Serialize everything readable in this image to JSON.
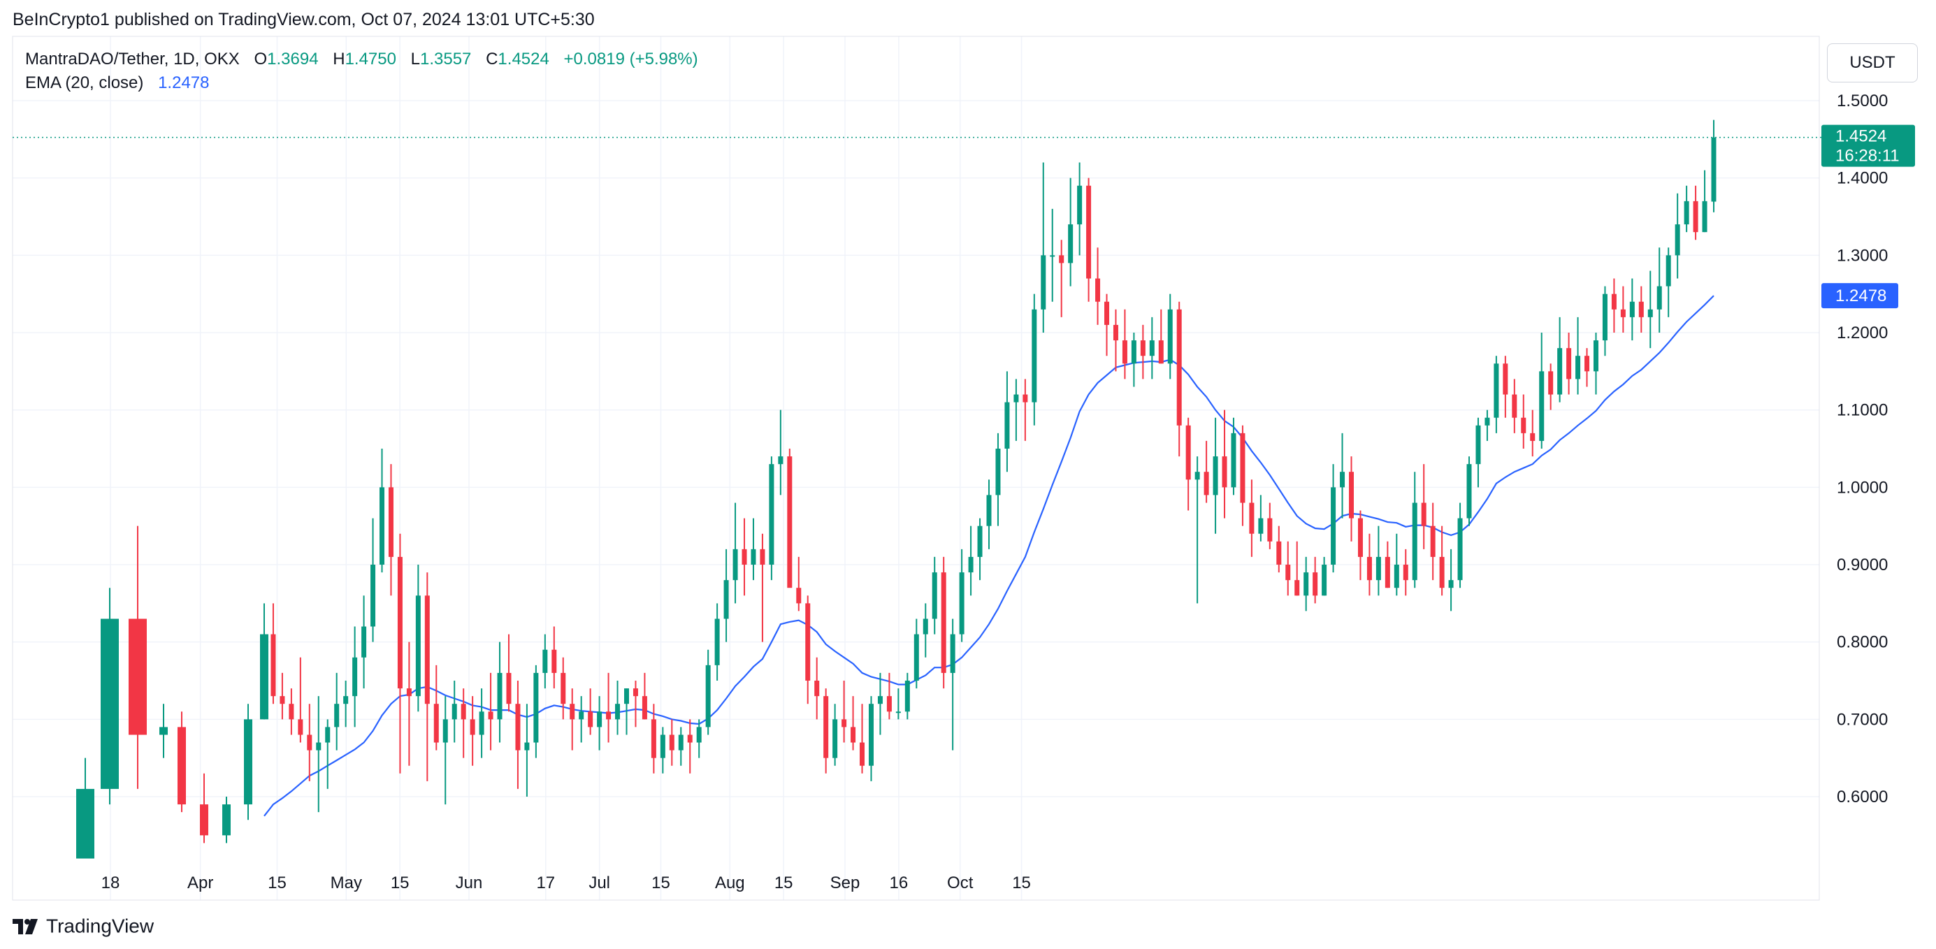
{
  "header": {
    "published": "BeInCrypto1 published on TradingView.com, Oct 07, 2024 13:01 UTC+5:30"
  },
  "legend": {
    "symbol": "MantraDAO/Tether, 1D, OKX",
    "o_label": "O",
    "o_value": "1.3694",
    "h_label": "H",
    "h_value": "1.4750",
    "l_label": "L",
    "l_value": "1.3557",
    "c_label": "C",
    "c_value": "1.4524",
    "change": "+0.0819 (+5.98%)",
    "ema_label": "EMA (20, close)",
    "ema_value": "1.2478"
  },
  "currency_button": "USDT",
  "footer": {
    "brand": "TradingView"
  },
  "colors": {
    "up": "#089981",
    "down": "#f23645",
    "ema": "#2962ff",
    "grid": "#f0f3fa"
  },
  "chart_data": {
    "type": "candlestick",
    "title": "MantraDAO/Tether, 1D, OKX",
    "ylim": [
      0.52,
      1.54
    ],
    "y_ticks": [
      "0.6000",
      "0.7000",
      "0.8000",
      "0.9000",
      "1.0000",
      "1.1000",
      "1.2000",
      "1.3000",
      "1.4000",
      "1.5000"
    ],
    "x_ticks": [
      "18",
      "Apr",
      "15",
      "May",
      "15",
      "Jun",
      "17",
      "Jul",
      "15",
      "Aug",
      "15",
      "Sep",
      "16",
      "Oct",
      "15"
    ],
    "last_price": {
      "value": 1.4524,
      "label": "1.4524",
      "countdown": "16:28:11"
    },
    "ema_label_value": {
      "value": 1.2478,
      "label": "1.2478"
    },
    "candles": [
      [
        0.52,
        0.65,
        0.51,
        0.61
      ],
      [
        0.61,
        0.87,
        0.59,
        0.83
      ],
      [
        0.83,
        0.95,
        0.61,
        0.68
      ],
      [
        0.68,
        0.72,
        0.65,
        0.69
      ],
      [
        0.69,
        0.71,
        0.58,
        0.59
      ],
      [
        0.59,
        0.63,
        0.54,
        0.55
      ],
      [
        0.55,
        0.6,
        0.54,
        0.59
      ],
      [
        0.59,
        0.72,
        0.57,
        0.7
      ],
      [
        0.7,
        0.85,
        0.7,
        0.81
      ],
      [
        0.81,
        0.85,
        0.72,
        0.73
      ],
      [
        0.73,
        0.76,
        0.7,
        0.72
      ],
      [
        0.72,
        0.74,
        0.68,
        0.7
      ],
      [
        0.7,
        0.78,
        0.67,
        0.68
      ],
      [
        0.68,
        0.72,
        0.62,
        0.66
      ],
      [
        0.66,
        0.73,
        0.58,
        0.67
      ],
      [
        0.67,
        0.7,
        0.61,
        0.69
      ],
      [
        0.69,
        0.76,
        0.66,
        0.72
      ],
      [
        0.72,
        0.75,
        0.69,
        0.73
      ],
      [
        0.73,
        0.82,
        0.69,
        0.78
      ],
      [
        0.78,
        0.86,
        0.74,
        0.82
      ],
      [
        0.82,
        0.96,
        0.8,
        0.9
      ],
      [
        0.9,
        1.05,
        0.89,
        1.0
      ],
      [
        1.0,
        1.03,
        0.86,
        0.91
      ],
      [
        0.91,
        0.94,
        0.63,
        0.74
      ],
      [
        0.74,
        0.8,
        0.64,
        0.73
      ],
      [
        0.73,
        0.9,
        0.71,
        0.86
      ],
      [
        0.86,
        0.89,
        0.62,
        0.72
      ],
      [
        0.72,
        0.77,
        0.66,
        0.67
      ],
      [
        0.67,
        0.73,
        0.59,
        0.7
      ],
      [
        0.7,
        0.75,
        0.67,
        0.72
      ],
      [
        0.72,
        0.74,
        0.65,
        0.7
      ],
      [
        0.7,
        0.73,
        0.64,
        0.68
      ],
      [
        0.68,
        0.74,
        0.65,
        0.71
      ],
      [
        0.71,
        0.76,
        0.66,
        0.7
      ],
      [
        0.7,
        0.8,
        0.67,
        0.76
      ],
      [
        0.76,
        0.81,
        0.71,
        0.72
      ],
      [
        0.72,
        0.75,
        0.61,
        0.66
      ],
      [
        0.66,
        0.72,
        0.6,
        0.67
      ],
      [
        0.67,
        0.77,
        0.65,
        0.76
      ],
      [
        0.76,
        0.81,
        0.74,
        0.79
      ],
      [
        0.79,
        0.82,
        0.74,
        0.76
      ],
      [
        0.76,
        0.78,
        0.7,
        0.72
      ],
      [
        0.72,
        0.74,
        0.66,
        0.7
      ],
      [
        0.7,
        0.73,
        0.67,
        0.71
      ],
      [
        0.71,
        0.74,
        0.68,
        0.69
      ],
      [
        0.69,
        0.73,
        0.66,
        0.71
      ],
      [
        0.71,
        0.76,
        0.67,
        0.7
      ],
      [
        0.7,
        0.75,
        0.68,
        0.72
      ],
      [
        0.72,
        0.74,
        0.68,
        0.74
      ],
      [
        0.74,
        0.75,
        0.69,
        0.73
      ],
      [
        0.73,
        0.76,
        0.7,
        0.7
      ],
      [
        0.7,
        0.72,
        0.63,
        0.65
      ],
      [
        0.65,
        0.69,
        0.63,
        0.68
      ],
      [
        0.68,
        0.7,
        0.64,
        0.66
      ],
      [
        0.66,
        0.69,
        0.64,
        0.68
      ],
      [
        0.68,
        0.7,
        0.63,
        0.67
      ],
      [
        0.67,
        0.7,
        0.65,
        0.69
      ],
      [
        0.69,
        0.79,
        0.68,
        0.77
      ],
      [
        0.77,
        0.85,
        0.75,
        0.83
      ],
      [
        0.83,
        0.92,
        0.8,
        0.88
      ],
      [
        0.88,
        0.98,
        0.85,
        0.92
      ],
      [
        0.92,
        0.96,
        0.86,
        0.9
      ],
      [
        0.9,
        0.96,
        0.88,
        0.92
      ],
      [
        0.92,
        0.94,
        0.8,
        0.9
      ],
      [
        0.9,
        1.04,
        0.88,
        1.03
      ],
      [
        1.03,
        1.1,
        0.99,
        1.04
      ],
      [
        1.04,
        1.05,
        0.88,
        0.87
      ],
      [
        0.87,
        0.91,
        0.84,
        0.85
      ],
      [
        0.85,
        0.86,
        0.72,
        0.75
      ],
      [
        0.75,
        0.78,
        0.7,
        0.73
      ],
      [
        0.73,
        0.74,
        0.63,
        0.65
      ],
      [
        0.65,
        0.72,
        0.64,
        0.7
      ],
      [
        0.7,
        0.75,
        0.67,
        0.69
      ],
      [
        0.69,
        0.73,
        0.66,
        0.67
      ],
      [
        0.67,
        0.72,
        0.63,
        0.64
      ],
      [
        0.64,
        0.73,
        0.62,
        0.72
      ],
      [
        0.72,
        0.76,
        0.68,
        0.73
      ],
      [
        0.73,
        0.76,
        0.7,
        0.71
      ],
      [
        0.71,
        0.74,
        0.7,
        0.71
      ],
      [
        0.71,
        0.76,
        0.7,
        0.75
      ],
      [
        0.75,
        0.83,
        0.74,
        0.81
      ],
      [
        0.81,
        0.85,
        0.78,
        0.83
      ],
      [
        0.83,
        0.91,
        0.81,
        0.89
      ],
      [
        0.89,
        0.91,
        0.74,
        0.76
      ],
      [
        0.76,
        0.83,
        0.66,
        0.81
      ],
      [
        0.81,
        0.92,
        0.8,
        0.89
      ],
      [
        0.89,
        0.95,
        0.86,
        0.91
      ],
      [
        0.91,
        0.96,
        0.88,
        0.95
      ],
      [
        0.95,
        1.01,
        0.92,
        0.99
      ],
      [
        0.99,
        1.07,
        0.95,
        1.05
      ],
      [
        1.05,
        1.15,
        1.02,
        1.11
      ],
      [
        1.11,
        1.14,
        1.06,
        1.12
      ],
      [
        1.12,
        1.14,
        1.06,
        1.11
      ],
      [
        1.11,
        1.25,
        1.08,
        1.23
      ],
      [
        1.23,
        1.42,
        1.2,
        1.3
      ],
      [
        1.3,
        1.36,
        1.24,
        1.3
      ],
      [
        1.3,
        1.32,
        1.22,
        1.29
      ],
      [
        1.29,
        1.4,
        1.26,
        1.34
      ],
      [
        1.34,
        1.42,
        1.3,
        1.39
      ],
      [
        1.39,
        1.4,
        1.24,
        1.27
      ],
      [
        1.27,
        1.31,
        1.21,
        1.24
      ],
      [
        1.24,
        1.25,
        1.17,
        1.21
      ],
      [
        1.21,
        1.23,
        1.15,
        1.19
      ],
      [
        1.19,
        1.23,
        1.14,
        1.16
      ],
      [
        1.16,
        1.2,
        1.13,
        1.19
      ],
      [
        1.19,
        1.21,
        1.14,
        1.17
      ],
      [
        1.17,
        1.22,
        1.14,
        1.19
      ],
      [
        1.19,
        1.23,
        1.16,
        1.16
      ],
      [
        1.16,
        1.25,
        1.14,
        1.23
      ],
      [
        1.23,
        1.24,
        1.04,
        1.08
      ],
      [
        1.08,
        1.09,
        0.97,
        1.01
      ],
      [
        1.01,
        1.04,
        0.85,
        1.02
      ],
      [
        1.02,
        1.06,
        0.98,
        0.99
      ],
      [
        0.99,
        1.09,
        0.94,
        1.04
      ],
      [
        1.04,
        1.1,
        0.96,
        1.0
      ],
      [
        1.0,
        1.09,
        0.99,
        1.07
      ],
      [
        1.07,
        1.08,
        0.95,
        0.98
      ],
      [
        0.98,
        1.01,
        0.91,
        0.94
      ],
      [
        0.94,
        0.99,
        0.93,
        0.96
      ],
      [
        0.96,
        0.98,
        0.92,
        0.93
      ],
      [
        0.93,
        0.95,
        0.89,
        0.9
      ],
      [
        0.9,
        0.93,
        0.86,
        0.88
      ],
      [
        0.88,
        0.93,
        0.86,
        0.86
      ],
      [
        0.86,
        0.91,
        0.84,
        0.89
      ],
      [
        0.89,
        0.91,
        0.85,
        0.86
      ],
      [
        0.86,
        0.91,
        0.86,
        0.9
      ],
      [
        0.9,
        1.03,
        0.89,
        1.0
      ],
      [
        1.0,
        1.07,
        0.96,
        1.02
      ],
      [
        1.02,
        1.04,
        0.93,
        0.96
      ],
      [
        0.96,
        0.97,
        0.88,
        0.91
      ],
      [
        0.91,
        0.94,
        0.86,
        0.88
      ],
      [
        0.88,
        0.95,
        0.86,
        0.91
      ],
      [
        0.91,
        0.93,
        0.87,
        0.87
      ],
      [
        0.87,
        0.94,
        0.86,
        0.9
      ],
      [
        0.9,
        0.92,
        0.86,
        0.88
      ],
      [
        0.88,
        1.02,
        0.87,
        0.98
      ],
      [
        0.98,
        1.03,
        0.92,
        0.95
      ],
      [
        0.95,
        0.98,
        0.88,
        0.91
      ],
      [
        0.91,
        0.95,
        0.86,
        0.87
      ],
      [
        0.87,
        0.92,
        0.84,
        0.88
      ],
      [
        0.88,
        0.98,
        0.87,
        0.96
      ],
      [
        0.96,
        1.04,
        0.95,
        1.03
      ],
      [
        1.03,
        1.09,
        1.0,
        1.08
      ],
      [
        1.08,
        1.1,
        1.06,
        1.09
      ],
      [
        1.09,
        1.17,
        1.07,
        1.16
      ],
      [
        1.16,
        1.17,
        1.09,
        1.12
      ],
      [
        1.12,
        1.14,
        1.07,
        1.09
      ],
      [
        1.09,
        1.12,
        1.05,
        1.07
      ],
      [
        1.07,
        1.1,
        1.04,
        1.06
      ],
      [
        1.06,
        1.2,
        1.05,
        1.15
      ],
      [
        1.15,
        1.16,
        1.1,
        1.12
      ],
      [
        1.12,
        1.22,
        1.11,
        1.18
      ],
      [
        1.18,
        1.2,
        1.12,
        1.14
      ],
      [
        1.14,
        1.22,
        1.12,
        1.17
      ],
      [
        1.17,
        1.18,
        1.13,
        1.15
      ],
      [
        1.15,
        1.2,
        1.12,
        1.19
      ],
      [
        1.19,
        1.26,
        1.17,
        1.25
      ],
      [
        1.25,
        1.27,
        1.2,
        1.23
      ],
      [
        1.23,
        1.26,
        1.2,
        1.22
      ],
      [
        1.22,
        1.27,
        1.19,
        1.24
      ],
      [
        1.24,
        1.26,
        1.2,
        1.22
      ],
      [
        1.22,
        1.28,
        1.18,
        1.23
      ],
      [
        1.23,
        1.31,
        1.2,
        1.26
      ],
      [
        1.26,
        1.31,
        1.22,
        1.3
      ],
      [
        1.3,
        1.38,
        1.27,
        1.34
      ],
      [
        1.34,
        1.39,
        1.33,
        1.37
      ],
      [
        1.37,
        1.39,
        1.32,
        1.33
      ],
      [
        1.33,
        1.41,
        1.33,
        1.37
      ],
      [
        1.3694,
        1.475,
        1.3557,
        1.4524
      ]
    ],
    "ema": [
      null,
      null,
      null,
      null,
      null,
      null,
      null,
      null,
      0.575,
      0.59,
      0.598,
      0.607,
      0.617,
      0.627,
      0.633,
      0.64,
      0.647,
      0.654,
      0.661,
      0.67,
      0.685,
      0.705,
      0.72,
      0.73,
      0.732,
      0.74,
      0.742,
      0.737,
      0.731,
      0.727,
      0.723,
      0.718,
      0.716,
      0.712,
      0.712,
      0.712,
      0.706,
      0.703,
      0.707,
      0.714,
      0.718,
      0.716,
      0.713,
      0.711,
      0.71,
      0.709,
      0.708,
      0.709,
      0.711,
      0.713,
      0.712,
      0.707,
      0.704,
      0.7,
      0.698,
      0.695,
      0.694,
      0.701,
      0.712,
      0.727,
      0.743,
      0.755,
      0.768,
      0.778,
      0.8,
      0.823,
      0.826,
      0.828,
      0.822,
      0.813,
      0.797,
      0.788,
      0.78,
      0.772,
      0.76,
      0.755,
      0.752,
      0.749,
      0.745,
      0.745,
      0.751,
      0.757,
      0.767,
      0.767,
      0.771,
      0.78,
      0.793,
      0.806,
      0.823,
      0.843,
      0.866,
      0.888,
      0.91,
      0.942,
      0.972,
      1.003,
      1.033,
      1.064,
      1.098,
      1.12,
      1.135,
      1.145,
      1.155,
      1.158,
      1.161,
      1.162,
      1.163,
      1.162,
      1.165,
      1.158,
      1.146,
      1.13,
      1.117,
      1.1,
      1.086,
      1.078,
      1.064,
      1.047,
      1.032,
      1.016,
      0.998,
      0.98,
      0.963,
      0.953,
      0.947,
      0.946,
      0.953,
      0.963,
      0.966,
      0.965,
      0.962,
      0.959,
      0.955,
      0.954,
      0.949,
      0.951,
      0.951,
      0.948,
      0.942,
      0.938,
      0.942,
      0.952,
      0.968,
      0.985,
      1.005,
      1.013,
      1.02,
      1.025,
      1.03,
      1.041,
      1.049,
      1.061,
      1.07,
      1.08,
      1.089,
      1.099,
      1.113,
      1.124,
      1.133,
      1.144,
      1.152,
      1.163,
      1.174,
      1.187,
      1.201,
      1.214,
      1.225,
      1.236,
      1.2478
    ]
  }
}
